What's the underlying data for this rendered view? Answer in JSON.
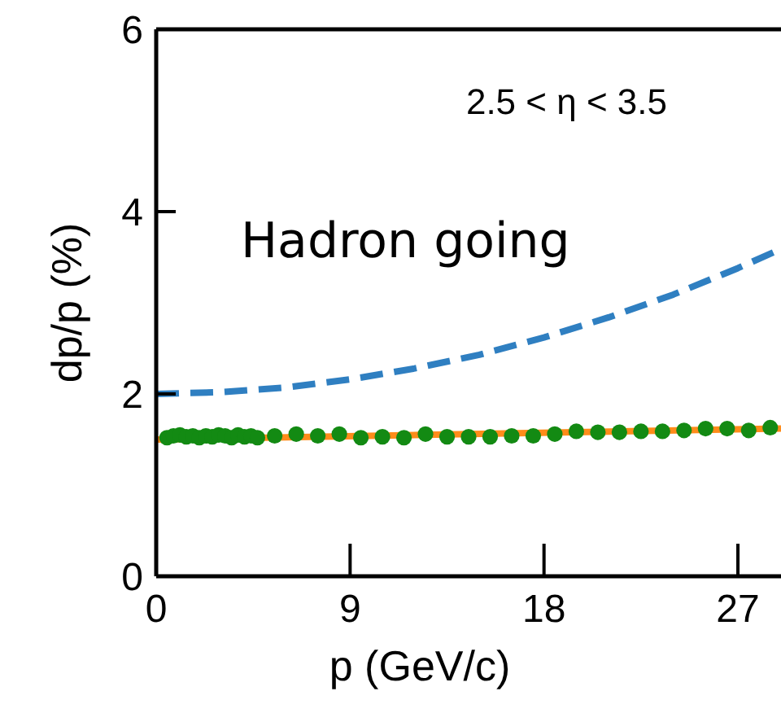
{
  "chart_data": {
    "type": "line",
    "xlabel": "p (GeV/c)",
    "ylabel": "dp/p (%)",
    "xlim": [
      0,
      29
    ],
    "ylim": [
      0,
      6
    ],
    "xticks": [
      0,
      9,
      18,
      27
    ],
    "yticks": [
      0,
      2,
      4,
      6
    ],
    "grid": false,
    "annotations": [
      "2.5 < η < 3.5",
      "Hadron going"
    ],
    "series": [
      {
        "color": "#2f7fc1",
        "line_style": "dashed",
        "marker": "none",
        "x": [
          0,
          3,
          6,
          9,
          12,
          15,
          18,
          21,
          24,
          27,
          29
        ],
        "values": [
          2.0,
          2.02,
          2.07,
          2.16,
          2.28,
          2.43,
          2.62,
          2.84,
          3.09,
          3.38,
          3.59
        ]
      },
      {
        "color": "#ff8c1a",
        "line_style": "solid",
        "marker": "none",
        "x": [
          0,
          29
        ],
        "values": [
          1.5,
          1.62
        ]
      },
      {
        "type": "scatter",
        "color": "#138a13",
        "marker": "circle",
        "x": [
          0.5,
          0.8,
          1.1,
          1.4,
          1.7,
          2.0,
          2.3,
          2.6,
          2.9,
          3.2,
          3.5,
          3.8,
          4.1,
          4.4,
          4.7,
          5.5,
          6.5,
          7.5,
          8.5,
          9.5,
          10.5,
          11.5,
          12.5,
          13.5,
          14.5,
          15.5,
          16.5,
          17.5,
          18.5,
          19.5,
          20.5,
          21.5,
          22.5,
          23.5,
          24.5,
          25.5,
          26.5,
          27.5,
          28.5
        ],
        "values": [
          1.52,
          1.54,
          1.55,
          1.53,
          1.54,
          1.52,
          1.54,
          1.53,
          1.55,
          1.54,
          1.52,
          1.55,
          1.53,
          1.54,
          1.52,
          1.54,
          1.56,
          1.54,
          1.56,
          1.52,
          1.53,
          1.52,
          1.56,
          1.53,
          1.53,
          1.53,
          1.54,
          1.54,
          1.56,
          1.59,
          1.58,
          1.58,
          1.59,
          1.59,
          1.6,
          1.62,
          1.62,
          1.6,
          1.63
        ]
      }
    ]
  }
}
